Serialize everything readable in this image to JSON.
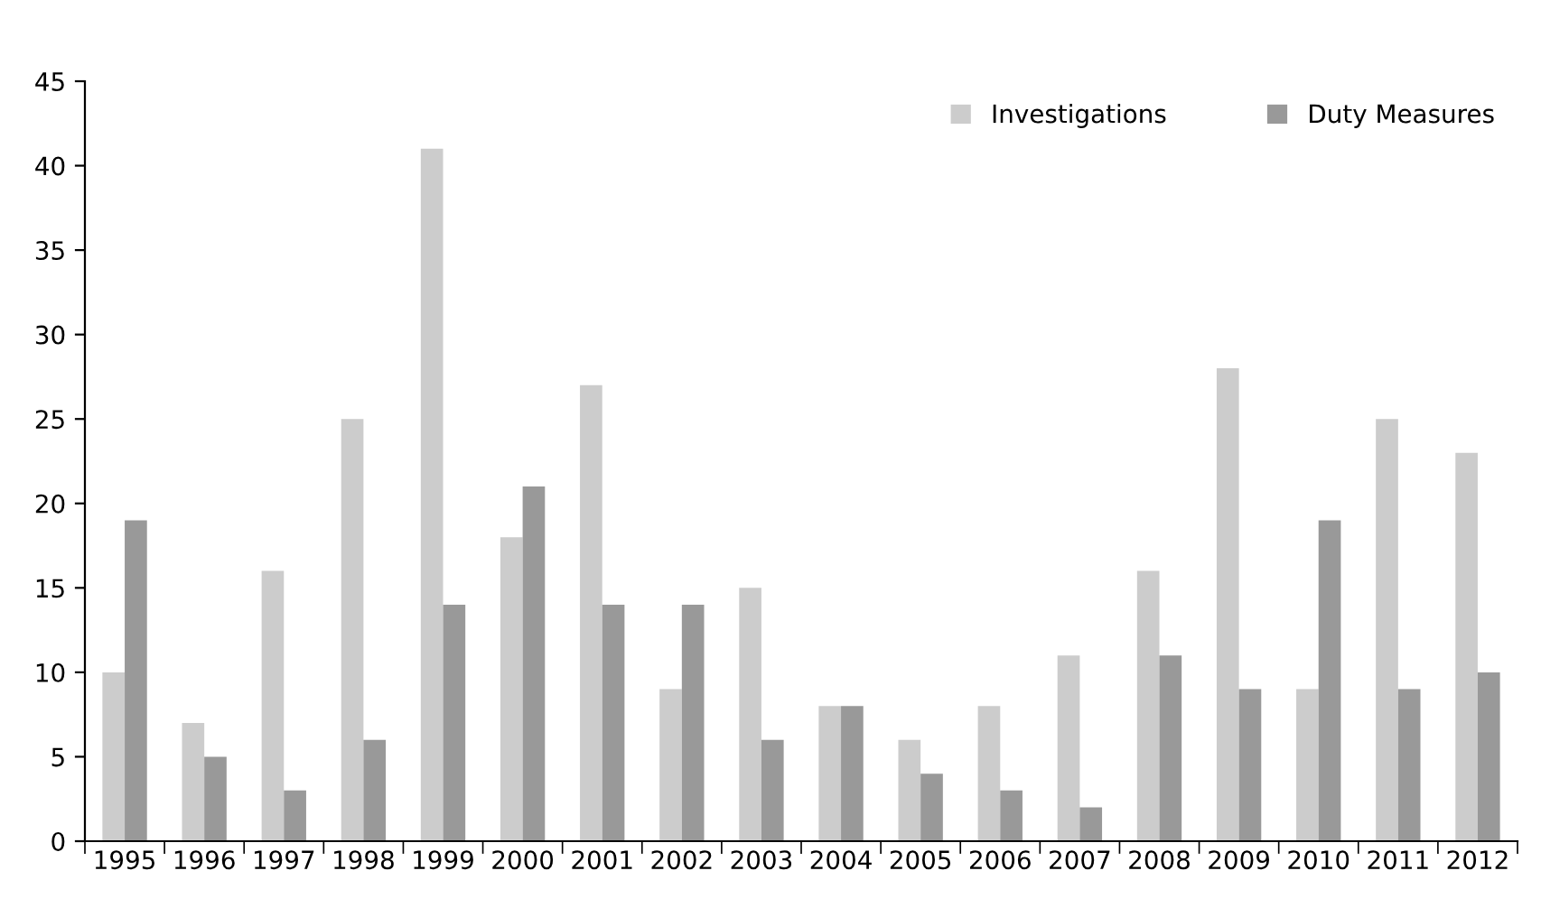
{
  "chart_data": {
    "type": "bar",
    "categories": [
      "1995",
      "1996",
      "1997",
      "1998",
      "1999",
      "2000",
      "2001",
      "2002",
      "2003",
      "2004",
      "2005",
      "2006",
      "2007",
      "2008",
      "2009",
      "2010",
      "2011",
      "2012"
    ],
    "series": [
      {
        "name": "Investigations",
        "color": "#cccccc",
        "values": [
          10,
          7,
          16,
          25,
          41,
          18,
          27,
          9,
          15,
          8,
          6,
          8,
          11,
          16,
          28,
          9,
          25,
          23
        ]
      },
      {
        "name": "Duty Measures",
        "color": "#999999",
        "values": [
          19,
          5,
          3,
          6,
          14,
          21,
          14,
          14,
          6,
          8,
          4,
          3,
          2,
          11,
          9,
          19,
          9,
          10
        ]
      }
    ],
    "ylim": [
      0,
      45
    ],
    "yticks": [
      0,
      5,
      10,
      15,
      20,
      25,
      30,
      35,
      40,
      45
    ],
    "grid": false,
    "legend": "top right"
  }
}
